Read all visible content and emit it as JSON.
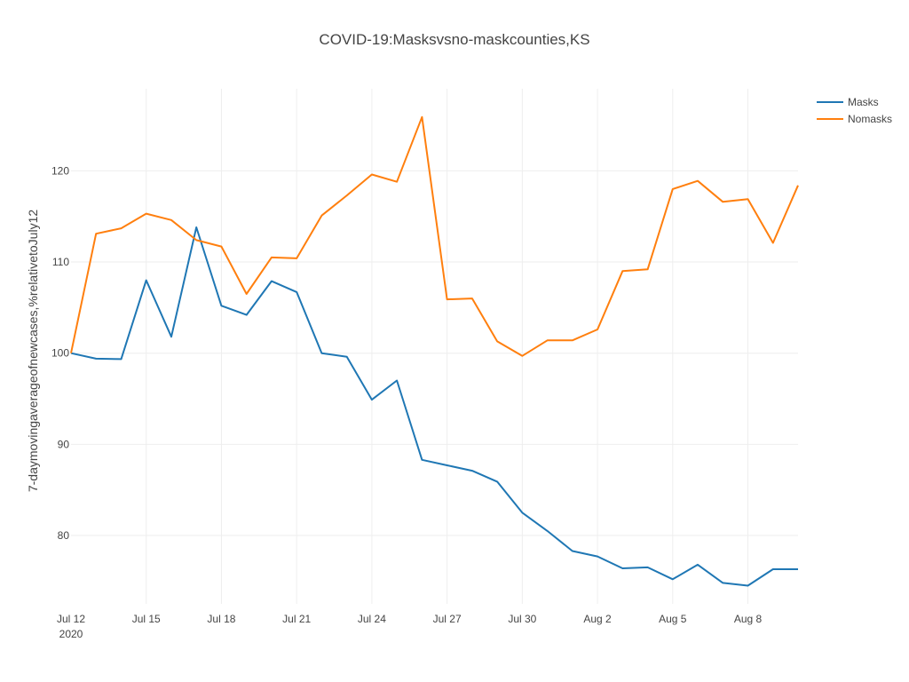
{
  "chart_data": {
    "type": "line",
    "title": "COVID-19:Masksvsno-maskcounties,KS",
    "xlabel": "",
    "ylabel": "7-daymovingaverageofnewcases,%relativetoJuly12",
    "x": [
      "2020-07-12",
      "2020-07-13",
      "2020-07-14",
      "2020-07-15",
      "2020-07-16",
      "2020-07-17",
      "2020-07-18",
      "2020-07-19",
      "2020-07-20",
      "2020-07-21",
      "2020-07-22",
      "2020-07-23",
      "2020-07-24",
      "2020-07-25",
      "2020-07-26",
      "2020-07-27",
      "2020-07-28",
      "2020-07-29",
      "2020-07-30",
      "2020-07-31",
      "2020-08-01",
      "2020-08-02",
      "2020-08-03",
      "2020-08-04",
      "2020-08-05",
      "2020-08-06",
      "2020-08-07",
      "2020-08-08",
      "2020-08-09",
      "2020-08-10"
    ],
    "xlim": [
      "2020-07-12",
      "2020-08-10"
    ],
    "ylim": [
      72.5,
      129
    ],
    "xticks": [
      {
        "date": "2020-07-12",
        "label": "Jul 12",
        "sublabel": "2020"
      },
      {
        "date": "2020-07-15",
        "label": "Jul 15"
      },
      {
        "date": "2020-07-18",
        "label": "Jul 18"
      },
      {
        "date": "2020-07-21",
        "label": "Jul 21"
      },
      {
        "date": "2020-07-24",
        "label": "Jul 24"
      },
      {
        "date": "2020-07-27",
        "label": "Jul 27"
      },
      {
        "date": "2020-07-30",
        "label": "Jul 30"
      },
      {
        "date": "2020-08-02",
        "label": "Aug 2"
      },
      {
        "date": "2020-08-05",
        "label": "Aug 5"
      },
      {
        "date": "2020-08-08",
        "label": "Aug 8"
      }
    ],
    "yticks": [
      80,
      90,
      100,
      110,
      120
    ],
    "grid": true,
    "legend_position": "top-right",
    "series": [
      {
        "name": "Masks",
        "color": "#1f77b4",
        "values": [
          100,
          99.4,
          99.35,
          108,
          101.8,
          113.8,
          105.2,
          104.2,
          107.9,
          106.7,
          100,
          99.6,
          94.9,
          97,
          88.3,
          87.7,
          87.1,
          85.9,
          82.5,
          80.5,
          78.3,
          77.7,
          76.4,
          76.5,
          75.2,
          76.8,
          74.8,
          74.5,
          76.3,
          76.3
        ]
      },
      {
        "name": "Nomasks",
        "color": "#ff7f0e",
        "values": [
          100,
          113.1,
          113.7,
          115.3,
          114.6,
          112.4,
          111.7,
          106.5,
          110.5,
          110.4,
          115.1,
          117.3,
          119.6,
          118.8,
          125.9,
          105.9,
          106,
          101.3,
          99.7,
          101.4,
          101.4,
          102.6,
          109,
          109.2,
          118,
          118.9,
          116.6,
          116.9,
          112.1,
          118.4
        ]
      }
    ]
  }
}
